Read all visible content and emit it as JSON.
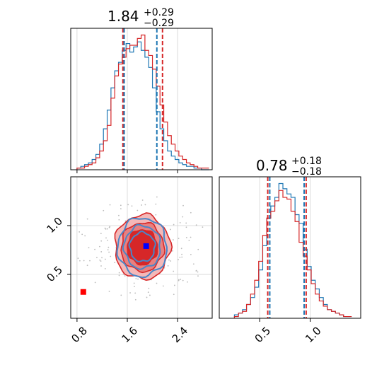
{
  "colors": {
    "blue": "#1f77b4",
    "red": "#d62728",
    "grid": "#d3d3d3",
    "marker_blue": "#0000ff",
    "marker_red": "#ff0000"
  },
  "chart_data": {
    "type": "corner",
    "panels": [
      {
        "id": "hist-param1",
        "type": "histogram",
        "title": {
          "value": "1.84",
          "plus": "+0.29",
          "minus": "−0.29"
        },
        "xlim": [
          0.7,
          2.95
        ],
        "grid": true,
        "bin_edges": [
          0.8,
          0.86,
          0.92,
          0.98,
          1.04,
          1.1,
          1.16,
          1.22,
          1.28,
          1.34,
          1.4,
          1.46,
          1.52,
          1.58,
          1.64,
          1.7,
          1.76,
          1.82,
          1.88,
          1.94,
          2.0,
          2.06,
          2.12,
          2.18,
          2.24,
          2.3,
          2.36,
          2.42,
          2.48,
          2.54,
          2.6,
          2.66,
          2.72,
          2.78,
          2.84,
          2.9
        ],
        "series": [
          {
            "name": "blue",
            "color": "#1f77b4",
            "counts": [
              1,
              2,
              3,
              4,
              6,
              9,
              15,
              24,
              35,
              48,
              58,
              63,
              70,
              74,
              69,
              72,
              75,
              70,
              66,
              60,
              48,
              34,
              24,
              17,
              11,
              8,
              6,
              4,
              3,
              2,
              2,
              1,
              1,
              0,
              0
            ]
          },
          {
            "name": "red",
            "color": "#d62728",
            "counts": [
              1,
              1,
              2,
              3,
              4,
              7,
              11,
              17,
              26,
              42,
              55,
              62,
              66,
              71,
              73,
              73,
              77,
              79,
              70,
              67,
              59,
              49,
              38,
              28,
              20,
              15,
              11,
              8,
              6,
              4,
              3,
              2,
              1,
              1,
              1
            ]
          }
        ],
        "quantile_lines": [
          {
            "x": 1.53,
            "color": "#d62728"
          },
          {
            "x": 1.55,
            "color": "#1f77b4"
          },
          {
            "x": 2.07,
            "color": "#1f77b4"
          },
          {
            "x": 2.16,
            "color": "#d62728"
          }
        ]
      },
      {
        "id": "hist-param2",
        "type": "histogram",
        "title": {
          "value": "0.78",
          "plus": "+0.18",
          "minus": "−0.18"
        },
        "xlim": [
          0.1,
          1.5
        ],
        "xticks": [
          "0.5",
          "1.0"
        ],
        "xtick_values": [
          0.5,
          1.0
        ],
        "grid": true,
        "bin_edges": [
          0.25,
          0.29,
          0.33,
          0.37,
          0.41,
          0.45,
          0.49,
          0.53,
          0.57,
          0.61,
          0.65,
          0.69,
          0.73,
          0.77,
          0.81,
          0.85,
          0.89,
          0.93,
          0.97,
          1.01,
          1.05,
          1.09,
          1.13,
          1.17,
          1.21,
          1.25,
          1.29,
          1.33,
          1.37,
          1.41
        ],
        "series": [
          {
            "name": "blue",
            "color": "#1f77b4",
            "counts": [
              2,
              3,
              5,
              8,
              12,
              18,
              28,
              42,
              58,
              65,
              70,
              78,
              75,
              72,
              70,
              60,
              55,
              40,
              30,
              22,
              17,
              12,
              8,
              5,
              4,
              3,
              2,
              1,
              1
            ]
          },
          {
            "name": "red",
            "color": "#d62728",
            "counts": [
              1,
              3,
              4,
              8,
              14,
              22,
              33,
              48,
              58,
              62,
              68,
              74,
              70,
              69,
              62,
              56,
              44,
              36,
              28,
              20,
              14,
              10,
              7,
              5,
              4,
              3,
              2,
              1,
              1
            ]
          }
        ],
        "quantile_lines": [
          {
            "x": 0.58,
            "color": "#d62728"
          },
          {
            "x": 0.6,
            "color": "#1f77b4"
          },
          {
            "x": 0.94,
            "color": "#1f77b4"
          },
          {
            "x": 0.96,
            "color": "#d62728"
          }
        ]
      },
      {
        "id": "scatter-2d",
        "type": "contour",
        "xlim": [
          0.7,
          2.95
        ],
        "ylim": [
          0.05,
          1.5
        ],
        "xticks": [
          "0.8",
          "1.6",
          "2.4"
        ],
        "xtick_values": [
          0.8,
          1.6,
          2.4
        ],
        "yticks": [
          "0.5",
          "1.0"
        ],
        "ytick_values": [
          0.5,
          1.0
        ],
        "grid": true,
        "red_levels": [
          {
            "rx": 0.44,
            "ry": 0.33,
            "color": "#f4b8b8"
          },
          {
            "rx": 0.34,
            "ry": 0.25,
            "color": "#e88080"
          },
          {
            "rx": 0.24,
            "ry": 0.18,
            "color": "#d62728"
          }
        ],
        "blue_levels": [
          {
            "rx": 0.39,
            "ry": 0.3
          },
          {
            "rx": 0.29,
            "ry": 0.22
          },
          {
            "rx": 0.2,
            "ry": 0.15
          }
        ],
        "center": [
          1.84,
          0.78
        ],
        "markers": [
          {
            "name": "true-value",
            "x": 1.9,
            "y": 0.79,
            "color": "#0000ff"
          },
          {
            "name": "reference-point",
            "x": 0.9,
            "y": 0.32,
            "color": "#ff0000"
          }
        ]
      }
    ]
  }
}
